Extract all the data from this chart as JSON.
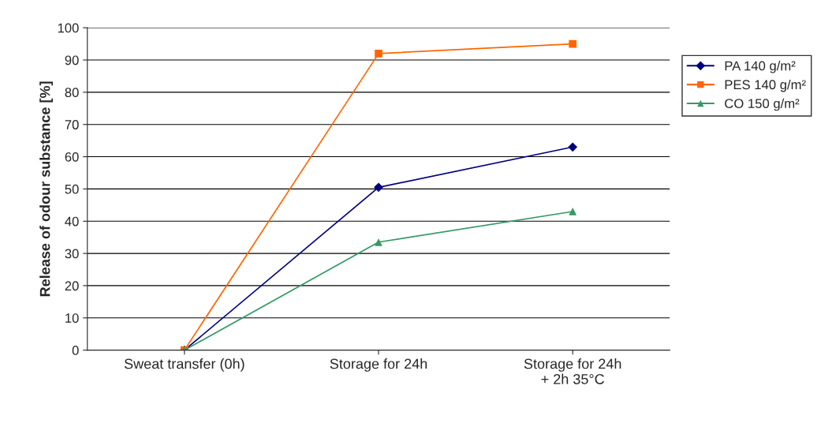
{
  "chart_data": {
    "type": "line",
    "ylabel": "Release of odour substance [%]",
    "categories": [
      "Sweat transfer (0h)",
      "Storage for 24h",
      "Storage for 24h\n+ 2h 35°C"
    ],
    "series": [
      {
        "name": "PA 140 g/m²",
        "color": "#000080",
        "marker": "diamond",
        "values": [
          0,
          50.5,
          63
        ]
      },
      {
        "name": "PES 140 g/m²",
        "color": "#ff6600",
        "marker": "square",
        "values": [
          0,
          92,
          95
        ]
      },
      {
        "name": "CO 150 g/m²",
        "color": "#339966",
        "marker": "triangle",
        "values": [
          0,
          33.5,
          43
        ]
      }
    ],
    "ylim": [
      0,
      100
    ],
    "yticks": [
      0,
      10,
      20,
      30,
      40,
      50,
      60,
      70,
      80,
      90,
      100
    ],
    "grid": "y",
    "legend": "right",
    "line_style": "solid"
  }
}
